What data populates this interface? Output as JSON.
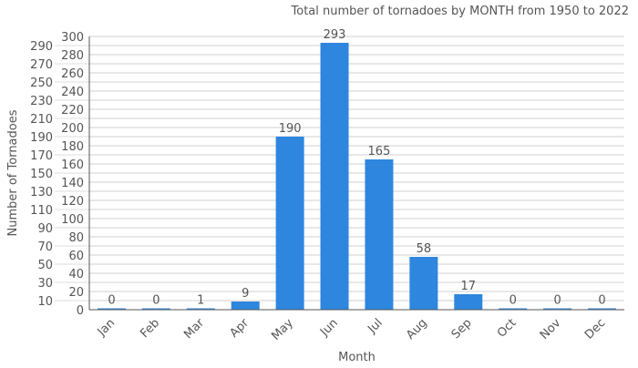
{
  "chart_data": {
    "type": "bar",
    "title": "Total number of tornadoes by MONTH from 1950 to 2022",
    "xlabel": "Month",
    "ylabel": "Number of Tornadoes",
    "categories": [
      "Jan",
      "Feb",
      "Mar",
      "Apr",
      "May",
      "Jun",
      "Jul",
      "Aug",
      "Sep",
      "Oct",
      "Nov",
      "Dec"
    ],
    "values": [
      0,
      0,
      1,
      9,
      190,
      293,
      165,
      58,
      17,
      0,
      0,
      0
    ],
    "ylim": [
      0,
      300
    ],
    "ytick_step": 10,
    "grid": true,
    "bar_color": "#2e86de"
  }
}
